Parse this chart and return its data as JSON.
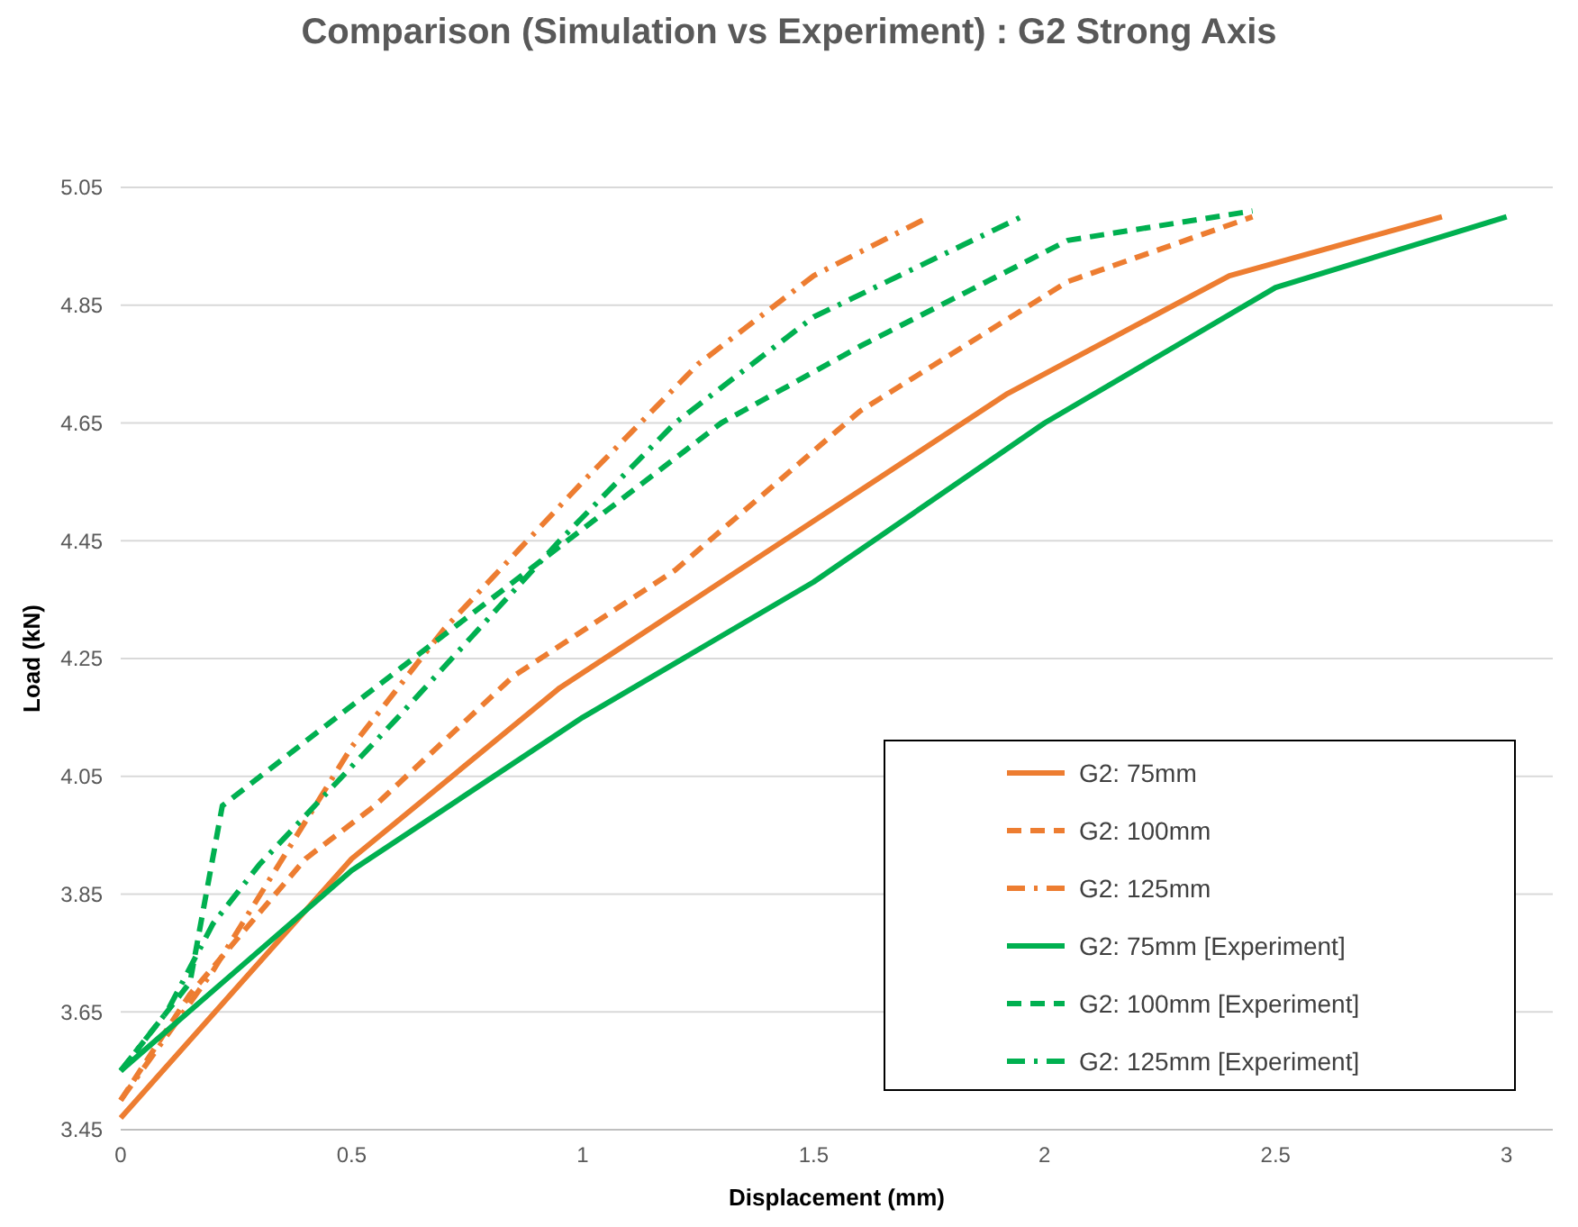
{
  "chart_data": {
    "type": "line",
    "title": "Comparison (Simulation vs Experiment) : G2 Strong Axis",
    "xlabel": "Displacement (mm)",
    "ylabel": "Load (kN)",
    "xlim": [
      0,
      3.1
    ],
    "xticks": [
      0,
      0.5,
      1,
      1.5,
      2,
      2.5,
      3
    ],
    "ylim": [
      3.45,
      5.05
    ],
    "yticks": [
      3.45,
      3.65,
      3.85,
      4.05,
      4.25,
      4.45,
      4.65,
      4.85,
      5.05
    ],
    "grid": "y",
    "legend": "bottom right",
    "marker": "none",
    "series": [
      {
        "name": "G2: 75mm",
        "color": "#ed7d31",
        "line_style": "solid",
        "x": [
          0,
          0.5,
          0.95,
          1.92,
          2.4,
          2.86
        ],
        "values": [
          3.47,
          3.91,
          4.2,
          4.7,
          4.9,
          5.0
        ]
      },
      {
        "name": "G2: 100mm",
        "color": "#ed7d31",
        "line_style": "dashed",
        "x": [
          0,
          0.15,
          0.4,
          0.55,
          0.85,
          1.2,
          1.6,
          2.05,
          2.45
        ],
        "values": [
          3.5,
          3.68,
          3.91,
          4.0,
          4.22,
          4.4,
          4.67,
          4.89,
          5.0
        ]
      },
      {
        "name": "G2: 125mm",
        "color": "#ed7d31",
        "line_style": "dashdot",
        "x": [
          0,
          0.2,
          0.5,
          0.7,
          1.0,
          1.25,
          1.5,
          1.75
        ],
        "values": [
          3.5,
          3.72,
          4.1,
          4.3,
          4.55,
          4.75,
          4.9,
          5.0
        ]
      },
      {
        "name": "G2: 75mm [Experiment]",
        "color": "#00b050",
        "line_style": "solid",
        "x": [
          0,
          0.5,
          1.0,
          1.5,
          2.0,
          2.5,
          3.0
        ],
        "values": [
          3.55,
          3.89,
          4.15,
          4.38,
          4.65,
          4.88,
          5.0
        ]
      },
      {
        "name": "G2: 100mm [Experiment]",
        "color": "#00b050",
        "line_style": "dashed",
        "x": [
          0,
          0.15,
          0.22,
          0.5,
          1.0,
          1.3,
          1.6,
          2.05,
          2.45
        ],
        "values": [
          3.55,
          3.7,
          4.0,
          4.17,
          4.47,
          4.65,
          4.78,
          4.96,
          5.01
        ]
      },
      {
        "name": "G2: 125mm [Experiment]",
        "color": "#00b050",
        "line_style": "dashdot",
        "x": [
          0,
          0.1,
          0.2,
          0.3,
          0.6,
          0.95,
          1.2,
          1.5,
          1.95
        ],
        "values": [
          3.55,
          3.65,
          3.8,
          3.9,
          4.15,
          4.45,
          4.65,
          4.83,
          5.0
        ]
      }
    ]
  }
}
